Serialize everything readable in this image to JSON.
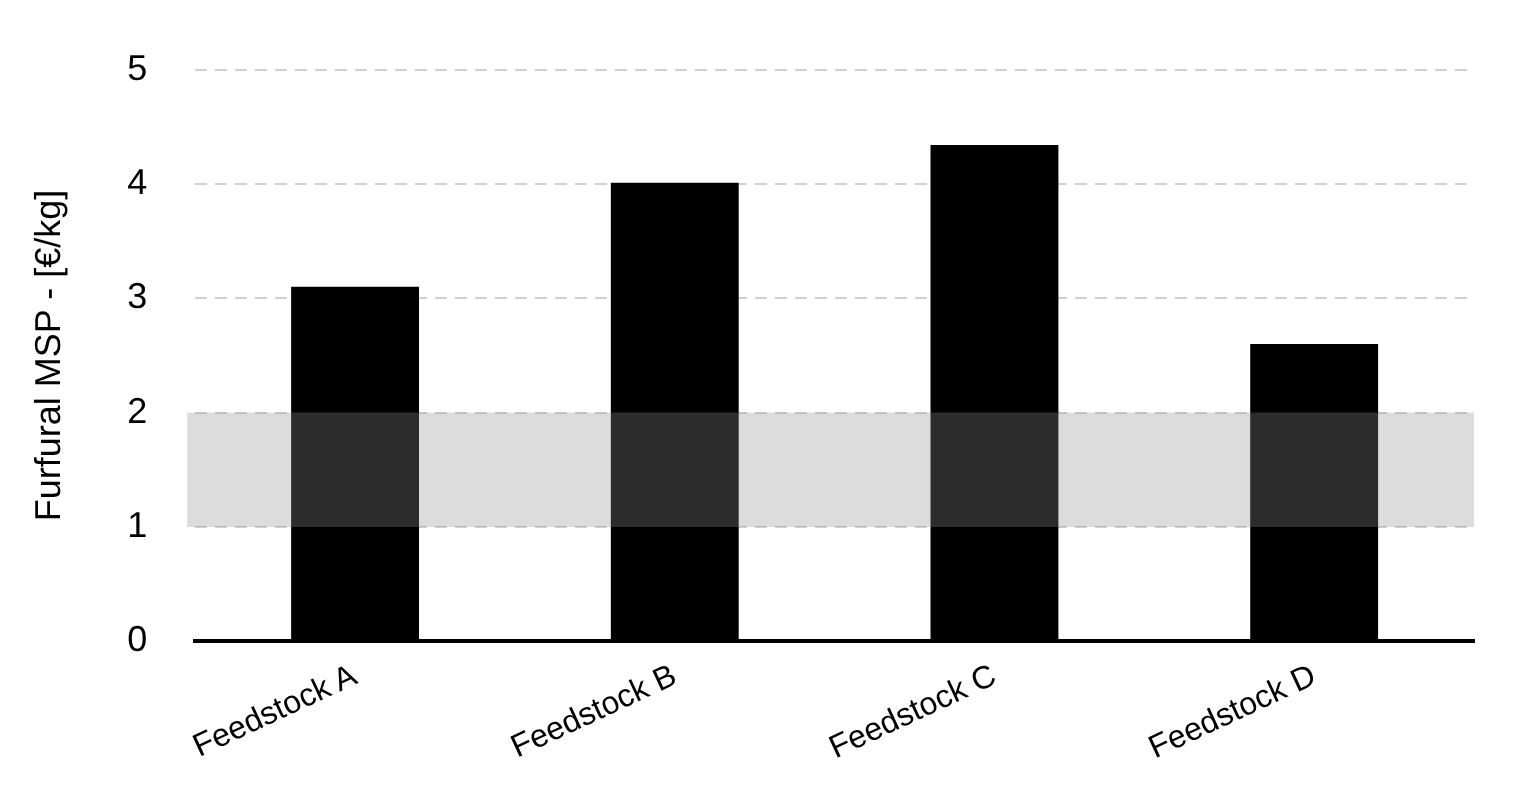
{
  "chart_data": {
    "type": "bar",
    "ylabel": "Furfural MSP - [€/kg]",
    "categories": [
      "Feedstock A",
      "Feedstock B",
      "Feedstock C",
      "Feedstock D"
    ],
    "values": [
      3.1,
      4.01,
      4.34,
      2.6
    ],
    "color": "#000000",
    "ylim": [
      0,
      5
    ],
    "yticks": [
      0,
      1,
      2,
      3,
      4,
      5
    ],
    "grid": "y",
    "legend": false,
    "bands": [
      {
        "axis": "y",
        "from": 1,
        "to": 2,
        "color": "#dcdcdc"
      }
    ]
  }
}
